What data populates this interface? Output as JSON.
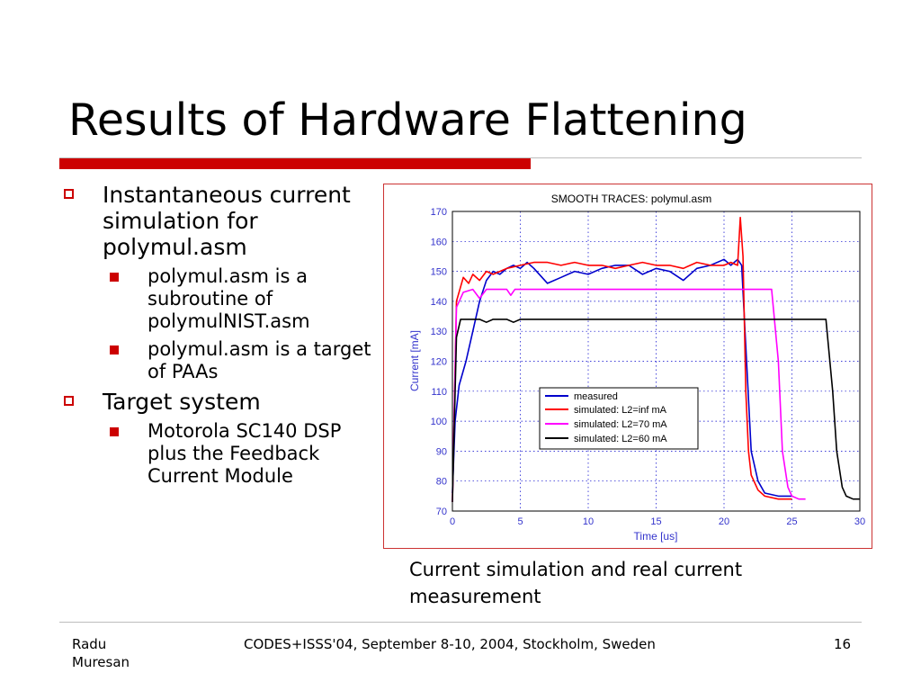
{
  "slide": {
    "title": "Results of Hardware Flattening",
    "bullets": [
      {
        "text": "Instantaneous current simulation for polymul.asm",
        "sub": [
          "polymul.asm is a subroutine of polymulNIST.asm",
          "polymul.asm is a target of PAAs"
        ]
      },
      {
        "text": "Target system",
        "sub": [
          "Motorola SC140 DSP plus the Feedback Current Module"
        ]
      }
    ],
    "caption": "Current simulation and real current measurement",
    "footer": {
      "author": "Radu Muresan",
      "conference": "CODES+ISSS'04, September 8-10, 2004, Stockholm, Sweden",
      "page": "16"
    }
  },
  "colors": {
    "accent": "#cc0000",
    "measured": "#0000cc",
    "l2_inf": "#ff0000",
    "l2_70": "#ff00ff",
    "l2_60": "#000000",
    "axis_text": "#3333cc",
    "grid": "#0000cc"
  },
  "chart_data": {
    "type": "line",
    "title": "SMOOTH TRACES: polymul.asm",
    "xlabel": "Time [us]",
    "ylabel": "Current [mA]",
    "xlim": [
      0,
      30
    ],
    "ylim": [
      70,
      170
    ],
    "xticks": [
      0,
      5,
      10,
      15,
      20,
      25,
      30
    ],
    "yticks": [
      70,
      80,
      90,
      100,
      110,
      120,
      130,
      140,
      150,
      160,
      170
    ],
    "grid": true,
    "legend_position": "center-right",
    "series": [
      {
        "name": "measured",
        "color": "#0000cc",
        "x": [
          0,
          0.2,
          0.5,
          1.0,
          1.5,
          2.0,
          2.5,
          3.0,
          3.5,
          4.0,
          4.5,
          5.0,
          5.5,
          6.0,
          7.0,
          8.0,
          9.0,
          10.0,
          11.0,
          12.0,
          13.0,
          14.0,
          15.0,
          16.0,
          17.0,
          18.0,
          19.0,
          20.0,
          20.5,
          21.0,
          21.3,
          21.6,
          22.0,
          22.5,
          23.0,
          24.0,
          25.0
        ],
        "y": [
          76,
          100,
          112,
          120,
          130,
          140,
          147,
          150,
          149,
          151,
          152,
          151,
          153,
          151,
          146,
          148,
          150,
          149,
          151,
          152,
          152,
          149,
          151,
          150,
          147,
          151,
          152,
          154,
          152,
          154,
          152,
          125,
          90,
          80,
          76,
          75,
          75
        ]
      },
      {
        "name": "simulated: L2=inf mA",
        "color": "#ff0000",
        "x": [
          0,
          0.3,
          0.8,
          1.2,
          1.5,
          2.0,
          2.5,
          3.0,
          4.0,
          5.0,
          6.0,
          7.0,
          8.0,
          9.0,
          10.0,
          11.0,
          12.0,
          13.0,
          14.0,
          15.0,
          16.0,
          17.0,
          18.0,
          19.0,
          20.0,
          20.5,
          21.0,
          21.2,
          21.4,
          21.6,
          21.8,
          22.0,
          22.5,
          23.0,
          24.0,
          25.0
        ],
        "y": [
          73,
          140,
          148,
          146,
          149,
          147,
          150,
          149,
          151,
          152,
          153,
          153,
          152,
          153,
          152,
          152,
          151,
          152,
          153,
          152,
          152,
          151,
          153,
          152,
          152,
          153,
          152,
          168,
          155,
          110,
          90,
          82,
          77,
          75,
          74,
          74
        ]
      },
      {
        "name": "simulated: L2=70 mA",
        "color": "#ff00ff",
        "x": [
          0,
          0.3,
          0.8,
          1.5,
          2.0,
          2.5,
          3.0,
          3.5,
          4.0,
          4.3,
          4.6,
          5.0,
          6.0,
          8.0,
          10.0,
          12.0,
          14.0,
          16.0,
          18.0,
          20.0,
          22.0,
          23.5,
          24.0,
          24.3,
          24.7,
          25.0,
          25.5,
          26.0
        ],
        "y": [
          73,
          138,
          143,
          144,
          141,
          144,
          144,
          144,
          144,
          142,
          144,
          144,
          144,
          144,
          144,
          144,
          144,
          144,
          144,
          144,
          144,
          144,
          120,
          90,
          78,
          75,
          74,
          74
        ]
      },
      {
        "name": "simulated: L2=60 mA",
        "color": "#000000",
        "x": [
          0,
          0.3,
          0.6,
          1.0,
          2.0,
          2.5,
          3.0,
          4.0,
          4.5,
          5.0,
          6.0,
          8.0,
          10.0,
          12.0,
          14.0,
          16.0,
          18.0,
          20.0,
          22.0,
          24.0,
          26.0,
          27.5,
          28.0,
          28.3,
          28.7,
          29.0,
          29.5,
          30.0
        ],
        "y": [
          73,
          128,
          134,
          134,
          134,
          133,
          134,
          134,
          133,
          134,
          134,
          134,
          134,
          134,
          134,
          134,
          134,
          134,
          134,
          134,
          134,
          134,
          110,
          90,
          78,
          75,
          74,
          74
        ]
      }
    ]
  }
}
